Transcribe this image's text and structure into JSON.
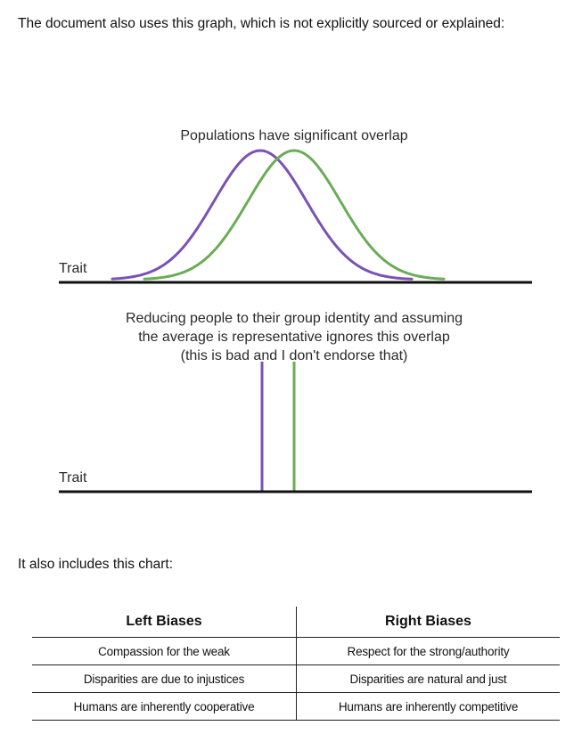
{
  "intro_text": "The document also uses this graph, which is not explicitly sourced or explained:",
  "figure": {
    "top_title": "Populations have significant overlap",
    "top_axis_label": "Trait",
    "caption_lines": [
      "Reducing people to their group identity and assuming",
      "the average is representative ignores this overlap",
      "(this is bad and I don't endorse that)"
    ],
    "bottom_axis_label": "Trait",
    "colors": {
      "group_a": "#7b52b3",
      "group_b": "#6aac57",
      "axis": "#111111"
    }
  },
  "chart_intro_text": "It also includes this chart:",
  "bias_table": {
    "headers": [
      "Left Biases",
      "Right Biases"
    ],
    "rows": [
      [
        "Compassion for the weak",
        "Respect for the strong/authority"
      ],
      [
        "Disparities are due to injustices",
        "Disparities are natural and just"
      ],
      [
        "Humans are inherently cooperative",
        "Humans are inherently competitive"
      ]
    ]
  }
}
